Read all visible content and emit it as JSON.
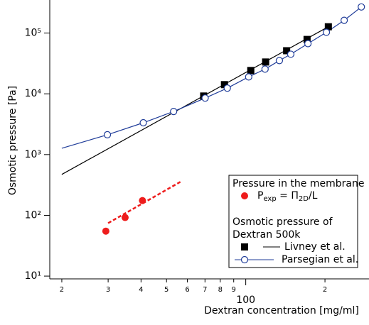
{
  "chart_data": {
    "type": "scatter",
    "x_label": "Dextran concentration [mg/ml]",
    "y_label": "Osmotic pressure [Pa]",
    "log_x": true,
    "log_y": true,
    "xlim": [
      18,
      294
    ],
    "ylim": [
      9,
      350000
    ],
    "xticks": [
      {
        "value": 20,
        "label": "2"
      },
      {
        "value": 30,
        "label": "3"
      },
      {
        "value": 40,
        "label": "4"
      },
      {
        "value": 50,
        "label": "5"
      },
      {
        "value": 60,
        "label": "6"
      },
      {
        "value": 70,
        "label": "7"
      },
      {
        "value": 80,
        "label": "8"
      },
      {
        "value": 90,
        "label": "9"
      },
      100,
      {
        "value": 200,
        "label": "2"
      }
    ],
    "yticks": [
      {
        "value": 10,
        "label": "10¹"
      },
      {
        "value": 100,
        "label": "10²"
      },
      {
        "value": 1000,
        "label": "10³"
      },
      {
        "value": 10000,
        "label": "10⁴"
      },
      {
        "value": 100000,
        "label": "10⁵"
      }
    ],
    "legend_groups": [
      "Pressure in the membrane",
      "Osmotic pressure of",
      "Dextran 500k"
    ],
    "series": [
      {
        "name": [
          "P",
          "exp",
          " = Π",
          "2D",
          "/L"
        ],
        "color": "#ee1c1c",
        "marker": "dot",
        "x": [
          29.4,
          34.8,
          40.5
        ],
        "values": [
          55,
          92,
          175
        ],
        "fit": {
          "x": [
            30,
            56.8
          ],
          "values": [
            74.5,
            361
          ],
          "dash": true
        }
      },
      {
        "name": "Livney et al.",
        "color": "#000000",
        "marker": "square",
        "x": [
          69.2,
          83,
          104.5,
          119,
          143,
          171,
          206
        ],
        "values": [
          9200,
          14160,
          24200,
          33400,
          51200,
          78500,
          127000
        ],
        "fit": {
          "x": [
            20,
            206
          ],
          "values": [
            472,
            127000
          ],
          "dash": false
        }
      },
      {
        "name": "Parsegian et al.",
        "color": "#1f3c99",
        "marker": "circle",
        "line": true,
        "x": [
          29.8,
          40.8,
          53.2,
          70.1,
          85.1,
          102.6,
          118.4,
          134.2,
          148.3,
          172.3,
          202.5,
          236.6,
          274.9
        ],
        "values": [
          2120,
          3340,
          5120,
          8510,
          12400,
          19000,
          25500,
          35200,
          44800,
          67000,
          103000,
          162000,
          269000
        ],
        "fit": {
          "x": [
            20,
            29.8
          ],
          "values": [
            1270,
            2120
          ],
          "dash": false
        }
      }
    ]
  }
}
